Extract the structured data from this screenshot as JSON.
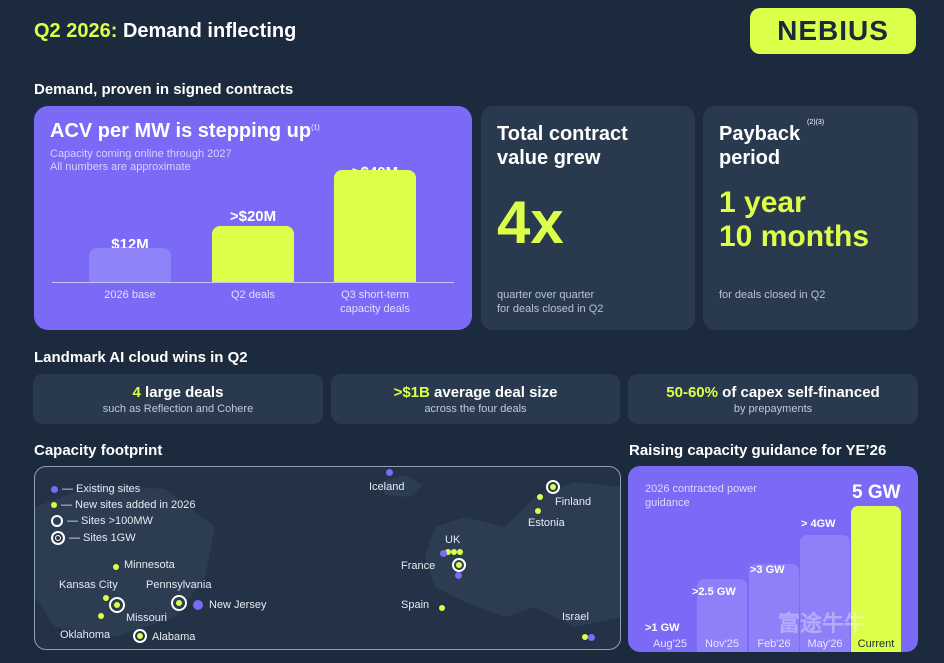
{
  "header": {
    "title_accent": "Q2 2026:",
    "title_rest": "Demand inflecting",
    "logo_text": "NEBIUS"
  },
  "demand": {
    "section_title": "Demand, proven in signed contracts",
    "acv": {
      "title": "ACV per MW is stepping up",
      "title_note": "(1)",
      "subtitle_line1": "Capacity coming online through 2027",
      "subtitle_line2": "All numbers are approximate",
      "bars": [
        {
          "value_label": "$12M",
          "category": "2026 base",
          "category2": "",
          "value": 12
        },
        {
          "value_label": ">$20M",
          "category": "Q2 deals",
          "category2": "",
          "value": 20
        },
        {
          "value_label": ">$40M",
          "category": "Q3 short-term",
          "category2": "capacity deals",
          "value": 40
        }
      ]
    },
    "tcv": {
      "title_line1": "Total contract",
      "title_line2": "value grew",
      "value": "4x",
      "note_line1": "quarter over quarter",
      "note_line2": "for deals closed in Q2"
    },
    "payback": {
      "title_line1": "Payback",
      "title_line2": "period",
      "title_note": "(2)(3)",
      "value_line1": "1 year",
      "value_line2": "10 months",
      "note": "for deals closed in Q2"
    }
  },
  "wins": {
    "section_title": "Landmark AI cloud wins in Q2",
    "items": [
      {
        "highlight": "4",
        "text": " large deals",
        "sub": "such as Reflection and Cohere"
      },
      {
        "highlight": ">$1B",
        "text": " average deal size",
        "sub": "across the four deals"
      },
      {
        "highlight": "50-60%",
        "text": " of capex self-financed",
        "sub": "by prepayments"
      }
    ]
  },
  "footprint": {
    "section_title": "Capacity footprint",
    "legend": [
      {
        "label": "— Existing sites",
        "marker": "violet-dot"
      },
      {
        "label": "— New sites added in 2026",
        "marker": "lime-dot"
      },
      {
        "label": "— Sites >100MW",
        "marker": "ring"
      },
      {
        "label": "— Sites 1GW",
        "marker": "double-ring"
      }
    ],
    "places": {
      "iceland": "Iceland",
      "finland": "Finland",
      "estonia": "Estonia",
      "uk": "UK",
      "france": "France",
      "spain": "Spain",
      "israel": "Israel",
      "minnesota": "Minnesota",
      "kansas_city": "Kansas City",
      "pennsylvania": "Pennsylvania",
      "missouri": "Missouri",
      "new_jersey": "New Jersey",
      "oklahoma": "Oklahoma",
      "alabama": "Alabama"
    },
    "colors": {
      "lime": "#dcff4a",
      "violet": "#7a6af5"
    }
  },
  "guidance": {
    "section_title": "Raising capacity guidance for YE’26",
    "subtitle_line1": "2026 contracted power",
    "subtitle_line2": "guidance",
    "bars": [
      {
        "label": ">1 GW",
        "category": "Aug'25",
        "value": 1
      },
      {
        "label": ">2.5 GW",
        "category": "Nov'25",
        "value": 2.5
      },
      {
        "label": ">3 GW",
        "category": "Feb'26",
        "value": 3
      },
      {
        "label": "> 4GW",
        "category": "May'26",
        "value": 4
      },
      {
        "label": "5 GW",
        "category": "Current",
        "value": 5
      }
    ]
  },
  "watermark": "富途牛牛",
  "theme": {
    "background": "#1b2a3d",
    "card": "#2a3a4e",
    "accent_lime": "#dcff4a",
    "accent_violet": "#7a6af5"
  }
}
